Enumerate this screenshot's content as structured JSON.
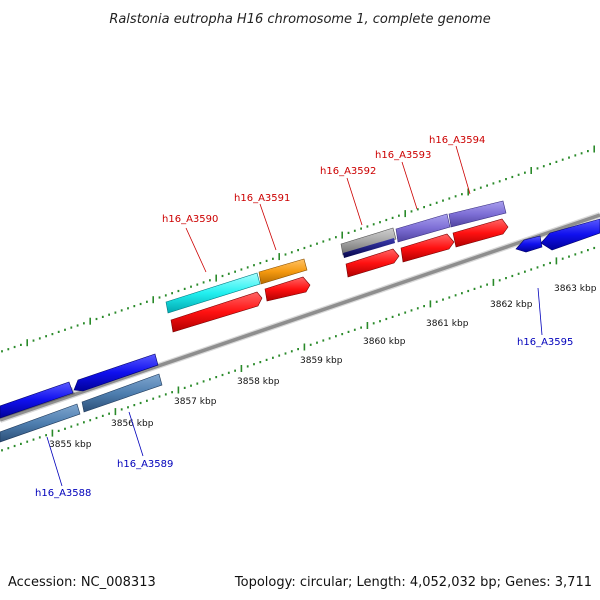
{
  "title": "Ralstonia eutropha H16 chromosome 1, complete genome",
  "footer": {
    "accession": "Accession: NC_008313",
    "summary": "Topology: circular; Length: 4,052,032 bp; Genes: 3,711"
  },
  "colors": {
    "backbone": "#8e8e8e",
    "tick": "#2a8a2a",
    "label_forward": "#cc0000",
    "label_reverse": "#0000bb"
  },
  "ticks": [
    "3855 kbp",
    "3856 kbp",
    "3857 kbp",
    "3858 kbp",
    "3859 kbp",
    "3860 kbp",
    "3861 kbp",
    "3862 kbp",
    "3863 kbp"
  ],
  "gene_labels_forward": [
    "h16_A3590",
    "h16_A3591",
    "h16_A3592",
    "h16_A3593",
    "h16_A3594"
  ],
  "gene_labels_reverse": [
    "h16_A3588",
    "h16_A3589",
    "h16_A3595"
  ]
}
